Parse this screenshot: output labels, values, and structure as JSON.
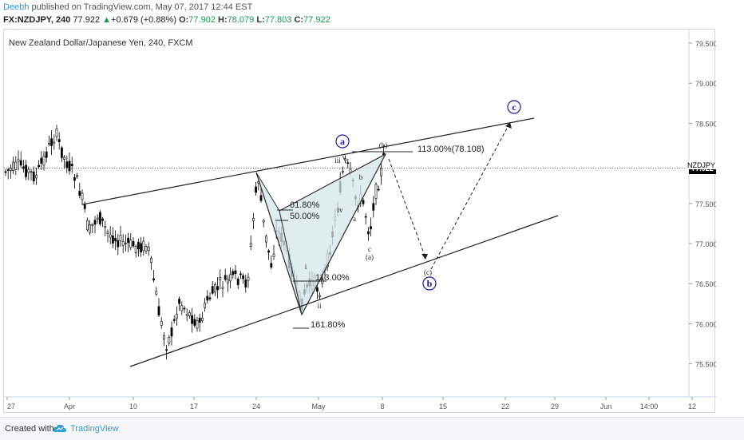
{
  "header": {
    "author": "Deebh",
    "published_text": " published on TradingView.com, May 07, 2017 12:44 EST",
    "symbol": "FX:NZDJPY, 240",
    "last": "77.922",
    "change_arrow": "▲",
    "change": "+0.679 (+0.88%)",
    "open_label": "O:",
    "open": "77.902",
    "high_label": "H:",
    "high": "78.079",
    "low_label": "L:",
    "low": "77.803",
    "close_label": "C:",
    "close": "77.922"
  },
  "footer": {
    "created_with": "Created with",
    "brand": "TradingView",
    "logo_icon": "tradingview-cloud-icon"
  },
  "colors": {
    "candles": "#000000",
    "trendlines": "#222222",
    "pattern_fill": "#d6e7ea",
    "wave_labels": "#1a1aa6",
    "price_tag_bg": "#000000"
  },
  "chart_data": {
    "type": "candlestick",
    "title": "New Zealand Dollar/Japanese Yen, 240, FXCM",
    "y_ticks": [
      "79.500",
      "79.000",
      "78.500",
      "78.000",
      "77.500",
      "77.000",
      "76.500",
      "76.000",
      "75.500"
    ],
    "ylim": [
      75.15,
      79.78
    ],
    "x_ticks": [
      "27",
      "Apr",
      "10",
      "17",
      "24",
      "May",
      "8",
      "15",
      "22",
      "29",
      "Jun",
      "14:00",
      "12"
    ],
    "current_price_label": "NZDJPY",
    "current_price": "77.922",
    "grid": false,
    "fib_labels": {
      "r618": "61.80%",
      "r500": "50.00%",
      "r130": "113.00%",
      "ext1618": "161.80%",
      "ext113": "113.00%(78.108)"
    },
    "wave_labels": {
      "circled": [
        "a",
        "b",
        "c"
      ],
      "minor": [
        "(b)",
        "(c)",
        "(a)"
      ],
      "sub": [
        "i",
        "ii",
        "iii",
        "iv",
        "v",
        "a",
        "b",
        "c"
      ]
    }
  }
}
